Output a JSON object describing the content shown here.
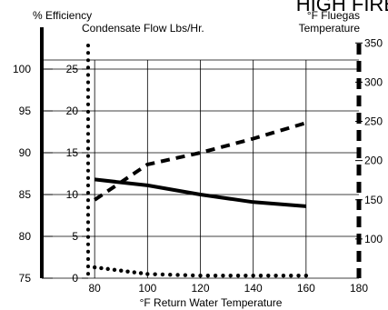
{
  "chart_data": {
    "type": "line",
    "title": "HIGH FIRE",
    "xlabel": "°F Return Water Temperature",
    "x_ticks": [
      "80",
      "100",
      "120",
      "140",
      "160",
      "180"
    ],
    "xlim": [
      60,
      180
    ],
    "grid": true,
    "axes": {
      "efficiency": {
        "label": "% Efficiency",
        "range": [
          75,
          105
        ],
        "ticks": [
          "75",
          "80",
          "85",
          "90",
          "95",
          "100"
        ]
      },
      "condensate": {
        "label": "Condensate Flow Lbs/Hr.",
        "range": [
          0,
          30
        ],
        "ticks": [
          "0",
          "5",
          "10",
          "15",
          "20",
          "25"
        ]
      },
      "fluegas": {
        "label_line1": "°F Fluegas",
        "label_line2": "Temperature",
        "range": [
          50,
          370
        ],
        "ticks": [
          "100",
          "150",
          "200",
          "250",
          "300",
          "350"
        ]
      }
    },
    "series": [
      {
        "axis": "efficiency",
        "style": "solid",
        "points": [
          [
            80,
            86.8
          ],
          [
            100,
            86.1
          ],
          [
            120,
            85.0
          ],
          [
            140,
            84.1
          ],
          [
            160,
            83.6
          ]
        ]
      },
      {
        "axis": "fluegas",
        "style": "dashed",
        "points": [
          [
            80,
            150
          ],
          [
            100,
            195
          ],
          [
            120,
            210
          ],
          [
            140,
            228
          ],
          [
            160,
            248
          ]
        ]
      },
      {
        "axis": "condensate",
        "style": "dotted",
        "points": [
          [
            80,
            1.3
          ],
          [
            90,
            0.9
          ],
          [
            100,
            0.5
          ],
          [
            120,
            0.3
          ],
          [
            140,
            0.3
          ],
          [
            160,
            0.3
          ]
        ]
      }
    ]
  }
}
